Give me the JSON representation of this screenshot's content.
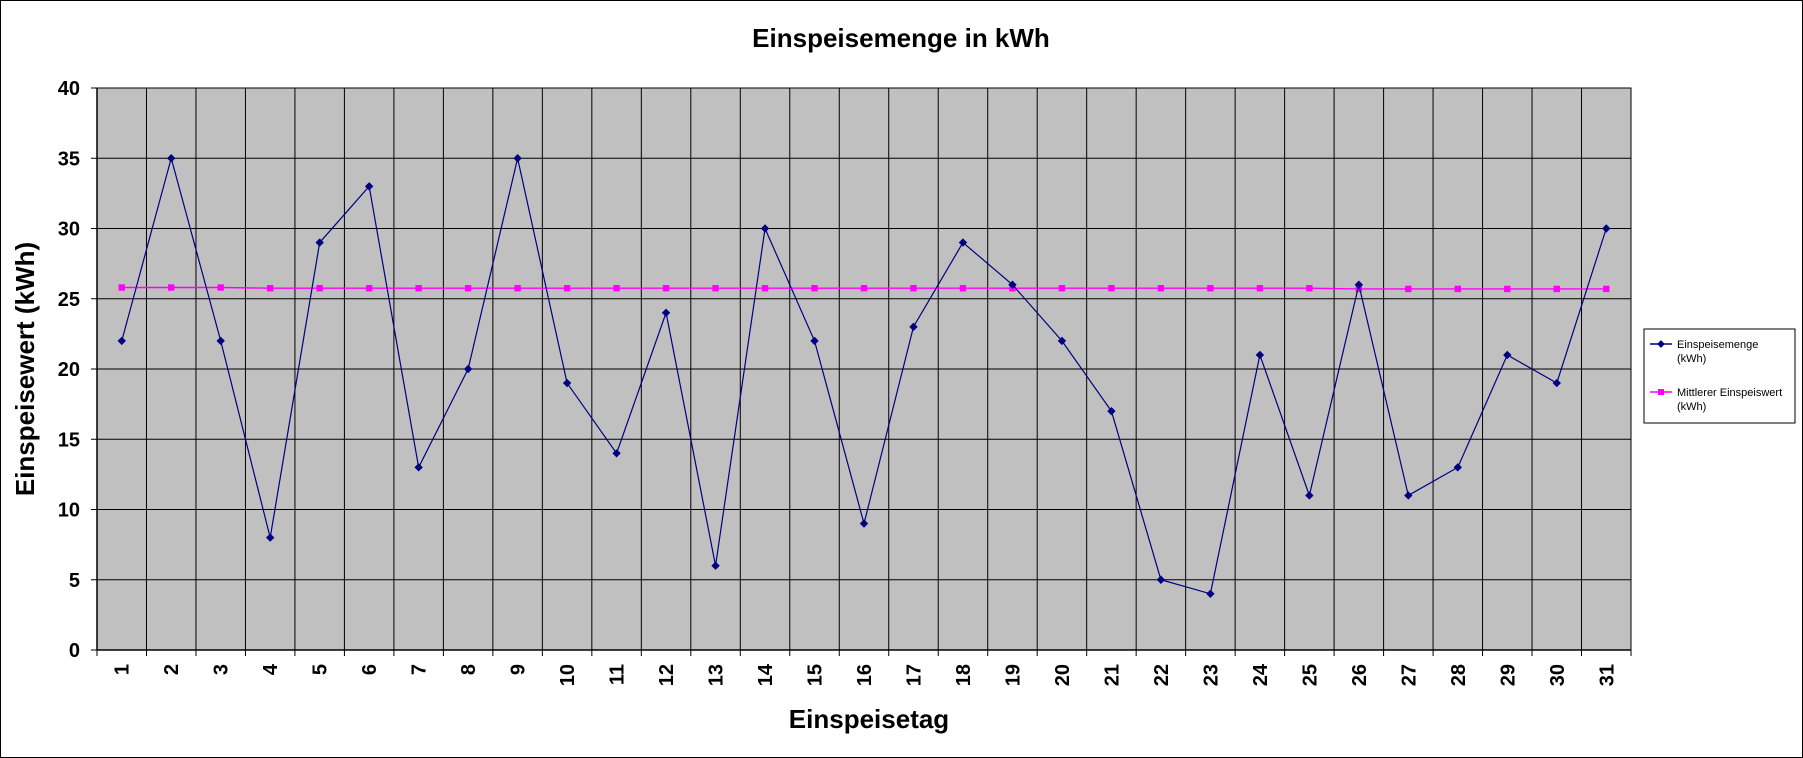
{
  "chart_data": {
    "type": "line",
    "title": "Einspeisemenge in kWh",
    "xlabel": "Einspeisetag",
    "ylabel": "Einspeisewert  (kWh)",
    "ylim": [
      0,
      40
    ],
    "yticks": [
      0,
      5,
      10,
      15,
      20,
      25,
      30,
      35,
      40
    ],
    "categories": [
      "1",
      "2",
      "3",
      "4",
      "5",
      "6",
      "7",
      "8",
      "9",
      "10",
      "11",
      "12",
      "13",
      "14",
      "15",
      "16",
      "17",
      "18",
      "19",
      "20",
      "21",
      "22",
      "23",
      "24",
      "25",
      "26",
      "27",
      "28",
      "29",
      "30",
      "31"
    ],
    "grid": true,
    "legend_position": "right",
    "plot_background": "#c0c0c0",
    "series": [
      {
        "name": "Einspeisemenge (kWh)",
        "legend_lines": [
          "Einspeisemenge",
          "(kWh)"
        ],
        "color": "#000080",
        "marker": "diamond",
        "values": [
          22,
          35,
          22,
          8,
          29,
          33,
          13,
          20,
          35,
          19,
          14,
          24,
          6,
          30,
          22,
          9,
          23,
          29,
          26,
          22,
          17,
          5,
          4,
          21,
          11,
          26,
          11,
          13,
          21,
          19,
          30
        ]
      },
      {
        "name": "Mittlerer Einspeiswert (kWh)",
        "legend_lines": [
          "Mittlerer Einspeiswert",
          "(kWh)"
        ],
        "color": "#ff00ff",
        "marker": "square",
        "values": [
          25.8,
          25.8,
          25.8,
          25.75,
          25.75,
          25.75,
          25.75,
          25.75,
          25.75,
          25.75,
          25.75,
          25.75,
          25.75,
          25.75,
          25.75,
          25.75,
          25.75,
          25.75,
          25.75,
          25.75,
          25.75,
          25.75,
          25.75,
          25.75,
          25.75,
          25.7,
          25.7,
          25.7,
          25.7,
          25.7,
          25.7
        ]
      }
    ]
  }
}
